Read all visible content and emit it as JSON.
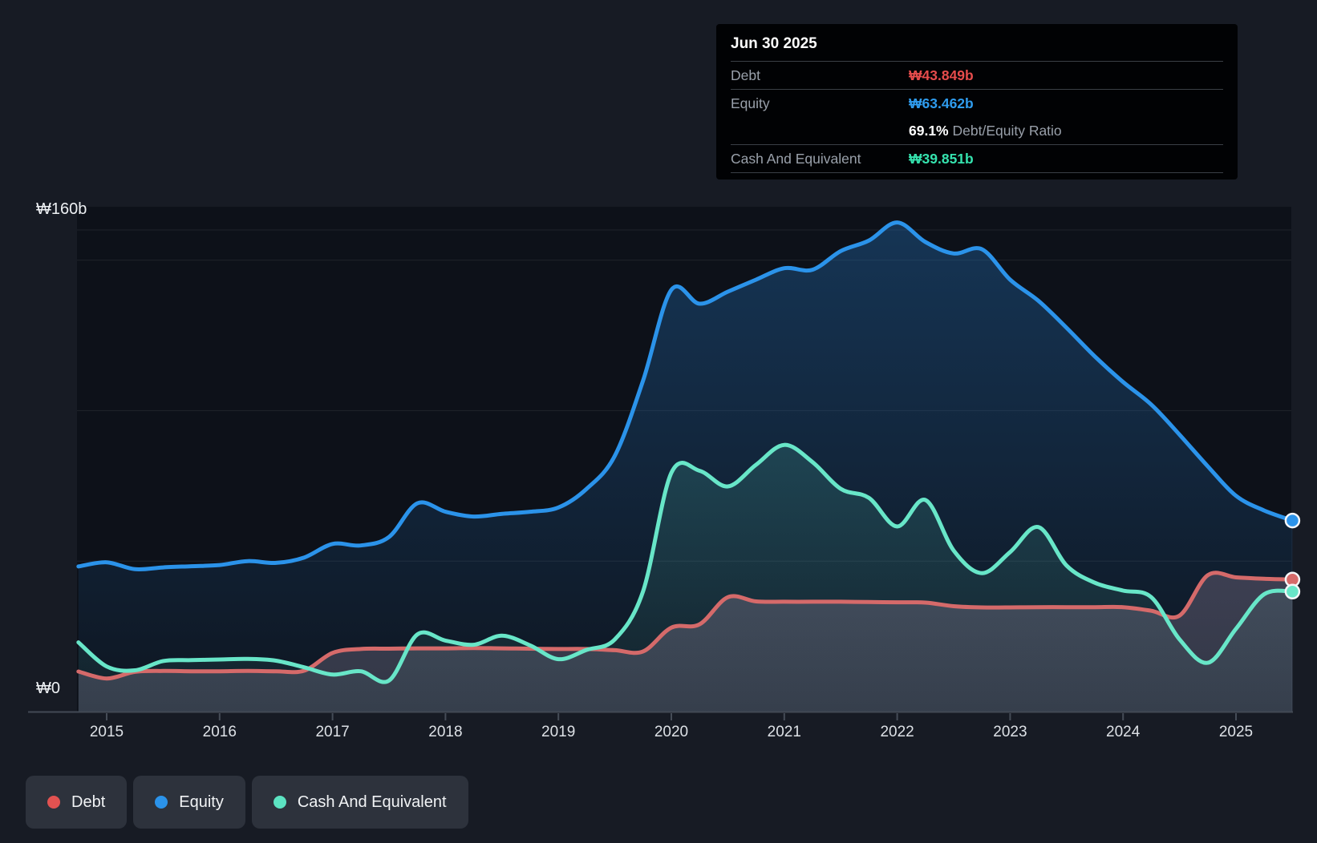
{
  "y_axis": {
    "top_label": "₩160b",
    "zero_label": "₩0"
  },
  "x_axis": {
    "ticks": [
      "2015",
      "2016",
      "2017",
      "2018",
      "2019",
      "2020",
      "2021",
      "2022",
      "2023",
      "2024",
      "2025"
    ]
  },
  "tooltip": {
    "date": "Jun 30 2025",
    "debt_label": "Debt",
    "debt_value": "₩43.849b",
    "equity_label": "Equity",
    "equity_value": "₩63.462b",
    "ratio_value": "69.1%",
    "ratio_label": " Debt/Equity Ratio",
    "cash_label": "Cash And Equivalent",
    "cash_value": "₩39.851b"
  },
  "legend": {
    "items": [
      {
        "label": "Debt",
        "color": "#e25251"
      },
      {
        "label": "Equity",
        "color": "#2b93ea"
      },
      {
        "label": "Cash And Equivalent",
        "color": "#5ce3c2"
      }
    ]
  },
  "colors": {
    "page_bg": "#171b24",
    "plot_bg": "#0d1119",
    "gridline": "rgba(255,255,255,0.08)",
    "axis_line": "#434a55",
    "tick": "#454c57",
    "tooltip_bg": "#010204",
    "tooltip_divider": "#3a3f46",
    "debt_value_text": "#e64c4c",
    "equity_value_text": "#2f9cee",
    "cash_value_text": "#35e2ae"
  },
  "chart_data": {
    "type": "area",
    "unit": "₩ billions",
    "ylim": [
      0,
      160
    ],
    "y_gridlines": [
      160,
      150,
      100,
      50
    ],
    "x_tick_years": [
      2015,
      2016,
      2017,
      2018,
      2019,
      2020,
      2021,
      2022,
      2023,
      2024,
      2025
    ],
    "legend_position": "bottom-left",
    "x": [
      2014.75,
      2015.0,
      2015.25,
      2015.5,
      2015.75,
      2016.0,
      2016.25,
      2016.5,
      2016.75,
      2017.0,
      2017.25,
      2017.5,
      2017.75,
      2018.0,
      2018.25,
      2018.5,
      2018.75,
      2019.0,
      2019.25,
      2019.5,
      2019.75,
      2020.0,
      2020.25,
      2020.5,
      2020.75,
      2021.0,
      2021.25,
      2021.5,
      2021.75,
      2022.0,
      2022.25,
      2022.5,
      2022.75,
      2023.0,
      2023.25,
      2023.5,
      2023.75,
      2024.0,
      2024.25,
      2024.5,
      2024.75,
      2025.0,
      2025.25,
      2025.5
    ],
    "series": [
      {
        "name": "Equity",
        "key": "equity",
        "color": "#2b93ea",
        "fill_top": "rgba(35,110,180,0.38)",
        "fill_bottom": "rgba(35,110,180,0.05)",
        "last_value": 63.462,
        "values": [
          48.2,
          49.6,
          47.3,
          47.9,
          48.3,
          48.7,
          50.0,
          49.4,
          51.2,
          55.7,
          55.2,
          58.0,
          69.2,
          66.4,
          64.8,
          65.7,
          66.4,
          67.8,
          74.0,
          85.0,
          110.0,
          140.1,
          135.5,
          139.5,
          143.5,
          147.3,
          146.8,
          153.0,
          156.5,
          162.5,
          156.0,
          152.2,
          153.6,
          143.5,
          136.5,
          127.5,
          118.0,
          109.5,
          102.0,
          92.0,
          81.5,
          71.7,
          66.8,
          63.462
        ]
      },
      {
        "name": "Cash And Equivalent",
        "key": "cash",
        "color": "#68e6c8",
        "fill_top": "rgba(98,229,198,0.24)",
        "fill_bottom": "rgba(98,229,198,0.05)",
        "last_value": 39.851,
        "values": [
          23.0,
          15.0,
          13.7,
          16.8,
          17.1,
          17.3,
          17.5,
          16.9,
          14.7,
          12.3,
          13.4,
          10.3,
          25.6,
          23.6,
          22.2,
          25.2,
          22.0,
          17.4,
          20.5,
          24.0,
          40.0,
          79.3,
          80.0,
          74.8,
          82.0,
          88.6,
          82.9,
          74.0,
          71.0,
          61.5,
          70.3,
          53.5,
          46.0,
          53.0,
          61.3,
          48.5,
          42.8,
          40.2,
          38.0,
          24.0,
          16.2,
          27.5,
          39.0,
          39.851
        ]
      },
      {
        "name": "Debt",
        "key": "debt",
        "color": "#d56a6a",
        "fill_top": "rgba(190,120,135,0.40)",
        "fill_bottom": "rgba(145,140,165,0.28)",
        "last_value": 43.849,
        "values": [
          13.3,
          11.0,
          13.2,
          13.5,
          13.4,
          13.4,
          13.5,
          13.4,
          13.6,
          19.5,
          20.8,
          20.9,
          21.0,
          21.0,
          21.1,
          21.0,
          20.9,
          20.8,
          20.8,
          20.4,
          20.0,
          27.9,
          29.0,
          38.0,
          36.6,
          36.5,
          36.5,
          36.5,
          36.4,
          36.3,
          36.2,
          35.0,
          34.6,
          34.6,
          34.7,
          34.7,
          34.7,
          34.7,
          33.5,
          31.9,
          45.3,
          44.6,
          44.1,
          43.849
        ]
      }
    ],
    "area_draw_order": [
      "equity",
      "cash",
      "debt"
    ],
    "line_draw_order": [
      "equity",
      "debt",
      "cash"
    ]
  }
}
